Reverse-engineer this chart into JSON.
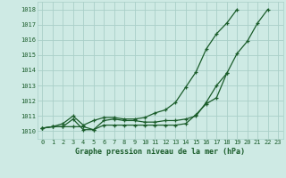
{
  "title": "Graphe pression niveau de la mer (hPa)",
  "background_color": "#ceeae4",
  "grid_color": "#aacfc8",
  "line_color": "#1a5c2a",
  "xlim": [
    -0.5,
    23.5
  ],
  "ylim": [
    1009.5,
    1018.5
  ],
  "xticks": [
    0,
    1,
    2,
    3,
    4,
    5,
    6,
    7,
    8,
    9,
    10,
    11,
    12,
    13,
    14,
    15,
    16,
    17,
    18,
    19,
    20,
    21,
    22,
    23
  ],
  "yticks": [
    1010,
    1011,
    1012,
    1013,
    1014,
    1015,
    1016,
    1017,
    1018
  ],
  "line1_x": [
    0,
    1,
    2,
    3,
    4,
    5,
    6,
    7,
    8,
    9,
    10,
    11,
    12,
    13,
    14,
    15,
    16,
    17,
    18,
    19,
    20,
    21,
    22
  ],
  "line1_y": [
    1010.2,
    1010.3,
    1010.3,
    1010.3,
    1010.3,
    1010.1,
    1010.4,
    1010.4,
    1010.4,
    1010.4,
    1010.4,
    1010.4,
    1010.4,
    1010.4,
    1010.5,
    1011.1,
    1011.8,
    1012.2,
    1013.8,
    1015.1,
    1015.9,
    1017.1,
    1018.0
  ],
  "line2_x": [
    0,
    1,
    2,
    3,
    4,
    5,
    6,
    7,
    8,
    9,
    10,
    11,
    12,
    13,
    14,
    15,
    16,
    17,
    18
  ],
  "line2_y": [
    1010.2,
    1010.3,
    1010.3,
    1010.8,
    1010.1,
    1010.1,
    1010.7,
    1010.8,
    1010.7,
    1010.7,
    1010.6,
    1010.6,
    1010.7,
    1010.7,
    1010.8,
    1011.0,
    1011.9,
    1013.0,
    1013.8
  ],
  "line3_x": [
    0,
    1,
    2,
    3,
    4,
    5,
    6,
    7,
    8,
    9,
    10,
    11,
    12,
    13,
    14,
    15,
    16,
    17,
    18,
    19
  ],
  "line3_y": [
    1010.2,
    1010.3,
    1010.5,
    1011.0,
    1010.4,
    1010.7,
    1010.9,
    1010.9,
    1010.8,
    1010.8,
    1010.9,
    1011.2,
    1011.4,
    1011.9,
    1012.9,
    1013.9,
    1015.4,
    1016.4,
    1017.1,
    1018.0
  ]
}
